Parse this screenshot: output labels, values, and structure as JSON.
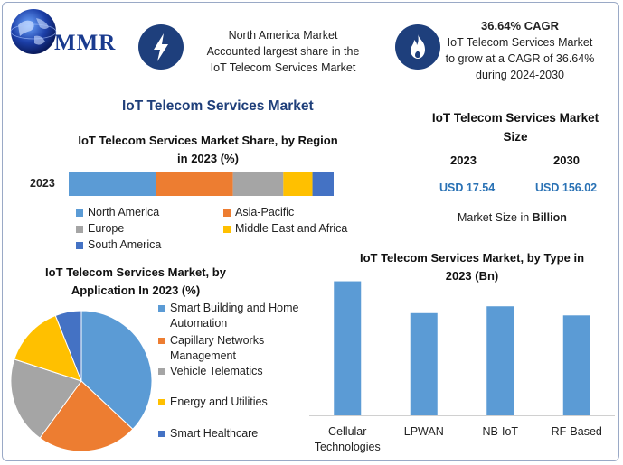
{
  "header": {
    "logo_text": "MMR",
    "highlight1": [
      "North America Market",
      "Accounted largest share in the",
      "IoT Telecom Services Market"
    ],
    "highlight2_title": "36.64% CAGR",
    "highlight2": [
      "IoT Telecom Services Market",
      "to grow at a CAGR of 36.64%",
      "during 2024-2030"
    ]
  },
  "main_title": "IoT Telecom Services Market",
  "market_size": {
    "title": [
      "IoT Telecom Services Market",
      "Size"
    ],
    "year1": "2023",
    "year2": "2030",
    "value1": "USD 17.54",
    "value2": "USD 156.02",
    "unit_prefix": "Market Size in ",
    "unit_bold": "Billion"
  },
  "colors": {
    "blue": "#5b9bd5",
    "orange": "#ed7d31",
    "gray": "#a5a5a5",
    "yellow": "#ffc000",
    "darkblue": "#4472c4",
    "accent": "#1f3f7a",
    "icon_bg": "#1e3f7c"
  },
  "icons": [
    "globe-icon",
    "lightning-icon",
    "flame-icon"
  ],
  "chart_data": [
    {
      "type": "bar",
      "orientation": "horizontal-stacked",
      "title": "IoT Telecom Services Market Share, by Region in 2023 (%)",
      "title_lines": [
        "IoT Telecom Services Market Share, by Region",
        "in 2023 (%)"
      ],
      "categories": [
        "2023"
      ],
      "series": [
        {
          "name": "North America",
          "values": [
            33
          ],
          "color": "#5b9bd5"
        },
        {
          "name": "Asia-Pacific",
          "values": [
            29
          ],
          "color": "#ed7d31"
        },
        {
          "name": "Europe",
          "values": [
            19
          ],
          "color": "#a5a5a5"
        },
        {
          "name": "Middle East and Africa",
          "values": [
            11
          ],
          "color": "#ffc000"
        },
        {
          "name": "South America",
          "values": [
            8
          ],
          "color": "#4472c4"
        }
      ]
    },
    {
      "type": "pie",
      "title": "IoT Telecom Services Market, by Application In 2023 (%)",
      "title_lines": [
        "IoT Telecom Services Market, by",
        "Application In 2023 (%)"
      ],
      "slices": [
        {
          "label": "Smart Building and Home Automation",
          "value": 37,
          "color": "#5b9bd5"
        },
        {
          "label": "Capillary Networks Management",
          "value": 23,
          "color": "#ed7d31"
        },
        {
          "label": "Vehicle Telematics",
          "value": 20,
          "color": "#a5a5a5"
        },
        {
          "label": "Energy and Utilities",
          "value": 14,
          "color": "#ffc000"
        },
        {
          "label": "Smart Healthcare",
          "value": 6,
          "color": "#4472c4"
        }
      ]
    },
    {
      "type": "bar",
      "title": "IoT Telecom Services Market, by Type in 2023 (Bn)",
      "title_lines": [
        "IoT Telecom Services Market, by Type in",
        "2023 (Bn)"
      ],
      "categories": [
        "Cellular Technologies",
        "LPWAN",
        "NB-IoT",
        "RF-Based"
      ],
      "category_lines": [
        [
          "Cellular",
          "Technologies"
        ],
        [
          "LPWAN"
        ],
        [
          "NB-IoT"
        ],
        [
          "RF-Based"
        ]
      ],
      "values": [
        5.9,
        4.5,
        4.8,
        4.4
      ],
      "ylim": [
        0,
        6.2
      ],
      "color": "#5b9bd5"
    }
  ]
}
